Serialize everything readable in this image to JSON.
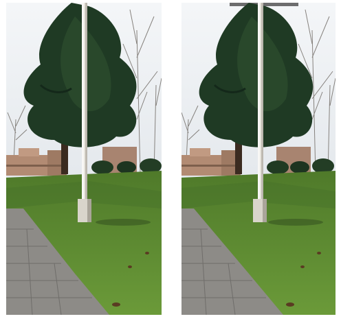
{
  "scene": {
    "type": "stereo-photo-pair",
    "subject": "park-with-lamp-post-and-evergreen-tree",
    "views": [
      {
        "id": "left"
      },
      {
        "id": "right"
      }
    ],
    "colors": {
      "sky": "#e7ecf1",
      "evergreen": "#1f3a24",
      "grass": "#5f8a33",
      "path": "#8d8b87",
      "pole": "#e8e5dd",
      "buildings": "#b28b73"
    }
  }
}
